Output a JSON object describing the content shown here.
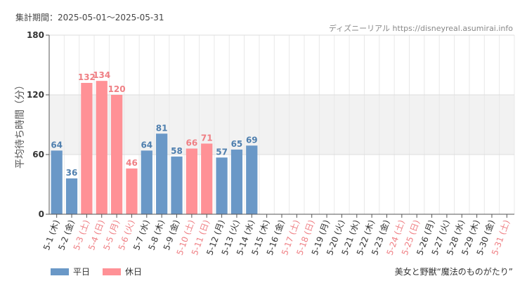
{
  "period_label": "集計期間：2025-05-01～2025-05-31",
  "source_label": "ディズニーリアル https://disneyreal.asumirai.info",
  "attraction_name": "美女と野獣“魔法のものがたり”",
  "legend": [
    {
      "name": "平日",
      "color": "#6a98c7"
    },
    {
      "name": "休日",
      "color": "#ff9196"
    }
  ],
  "colors": {
    "weekday": "#6a98c7",
    "holiday": "#ff9196",
    "weekday_text": "#4f7fae",
    "holiday_text": "#ef7f84",
    "band": "#f2f2f2"
  },
  "chart_data": {
    "type": "bar",
    "ylabel": "平均待ち時間（分）",
    "ylim": [
      0,
      180
    ],
    "yticks": [
      0,
      60,
      120,
      180
    ],
    "band": [
      60,
      120
    ],
    "categories": [
      "5-1 (木)",
      "5-2 (金)",
      "5-3 (土)",
      "5-4 (日)",
      "5-5 (月)",
      "5-6 (火)",
      "5-7 (水)",
      "5-8 (木)",
      "5-9 (金)",
      "5-10 (土)",
      "5-11 (日)",
      "5-12 (月)",
      "5-13 (火)",
      "5-14 (水)",
      "5-15 (木)",
      "5-16 (金)",
      "5-17 (土)",
      "5-18 (日)",
      "5-19 (月)",
      "5-20 (火)",
      "5-21 (水)",
      "5-22 (木)",
      "5-23 (金)",
      "5-24 (土)",
      "5-25 (日)",
      "5-26 (月)",
      "5-27 (火)",
      "5-28 (水)",
      "5-29 (木)",
      "5-30 (金)",
      "5-31 (土)"
    ],
    "values": [
      64,
      36,
      132,
      134,
      120,
      46,
      64,
      81,
      58,
      66,
      71,
      57,
      65,
      69,
      null,
      null,
      null,
      null,
      null,
      null,
      null,
      null,
      null,
      null,
      null,
      null,
      null,
      null,
      null,
      null,
      null
    ],
    "holiday": [
      false,
      false,
      true,
      true,
      true,
      true,
      false,
      false,
      false,
      true,
      true,
      false,
      false,
      false,
      false,
      false,
      true,
      true,
      false,
      false,
      false,
      false,
      false,
      true,
      true,
      false,
      false,
      false,
      false,
      false,
      true
    ]
  }
}
